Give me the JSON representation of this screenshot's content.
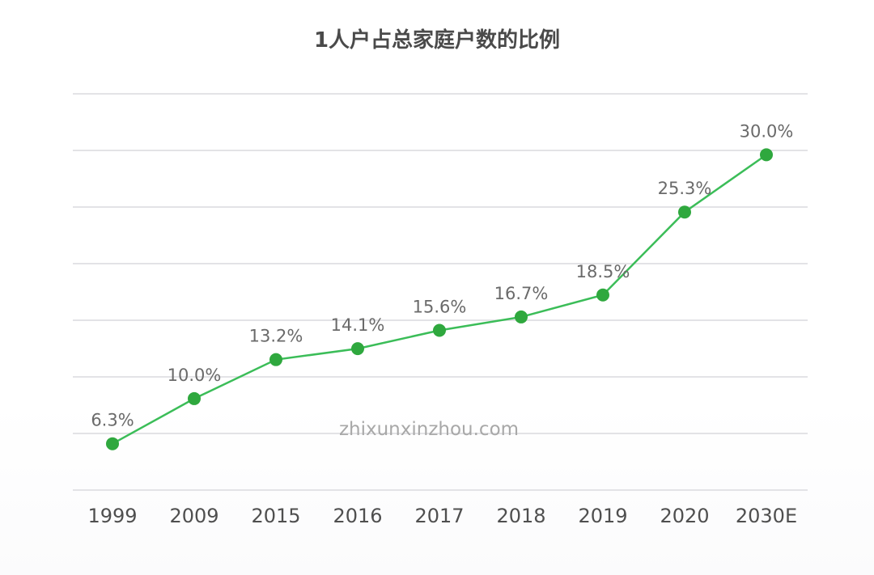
{
  "chart_data": {
    "type": "line",
    "title": "1人户占总家庭户数的比例",
    "xlabel": "",
    "ylabel": "",
    "categories": [
      "1999",
      "2009",
      "2015",
      "2016",
      "2017",
      "2018",
      "2019",
      "2020",
      "2030E"
    ],
    "series": [
      {
        "values": [
          6.3,
          10.0,
          13.2,
          14.1,
          15.6,
          16.7,
          18.5,
          25.3,
          30.0
        ],
        "labels": [
          "6.3%",
          "10.0%",
          "13.2%",
          "14.1%",
          "15.6%",
          "16.7%",
          "18.5%",
          "25.3%",
          "30.0%"
        ]
      }
    ],
    "ylim": [
      2.5,
      35.0
    ],
    "grid": true,
    "legend": "none",
    "colors": {
      "line": "#3bbd58",
      "point": "#2fa83e",
      "grid": "#e3e3e6"
    }
  },
  "watermark": "zhixunxinzhou.com"
}
